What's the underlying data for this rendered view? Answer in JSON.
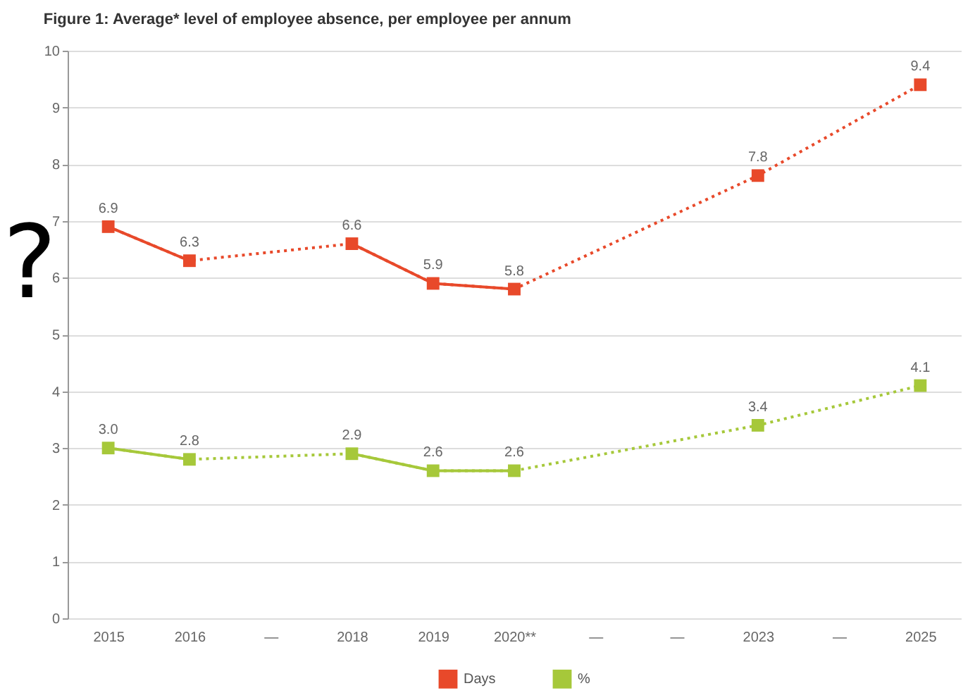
{
  "chart_data": {
    "type": "line",
    "title": "Figure 1: Average* level of employee absence, per employee per annum",
    "categories": [
      "2015",
      "2016",
      "—",
      "2018",
      "2019",
      "2020**",
      "—",
      "—",
      "2023",
      "—",
      "2025"
    ],
    "series": [
      {
        "name": "Days",
        "color": "#e8492a",
        "values": [
          6.9,
          6.3,
          null,
          6.6,
          5.9,
          5.8,
          null,
          null,
          7.8,
          null,
          9.4
        ],
        "value_labels": [
          "6.9",
          "6.3",
          null,
          "6.6",
          "5.9",
          "5.8",
          null,
          null,
          "7.8",
          null,
          "9.4"
        ]
      },
      {
        "name": "%",
        "color": "#a6c83a",
        "values": [
          3.0,
          2.8,
          null,
          2.9,
          2.6,
          2.6,
          null,
          null,
          3.4,
          null,
          4.1
        ],
        "value_labels": [
          "3.0",
          "2.8",
          null,
          "2.9",
          "2.6",
          "2.6",
          null,
          null,
          "3.4",
          null,
          "4.1"
        ]
      }
    ],
    "ylim": [
      0,
      10
    ],
    "yticks": [
      0,
      1,
      2,
      3,
      4,
      5,
      6,
      7,
      8,
      9,
      10
    ],
    "grid": "y",
    "legend": "bottom",
    "marker": "square",
    "line_style": "dotted",
    "annotations": [
      "?"
    ]
  }
}
